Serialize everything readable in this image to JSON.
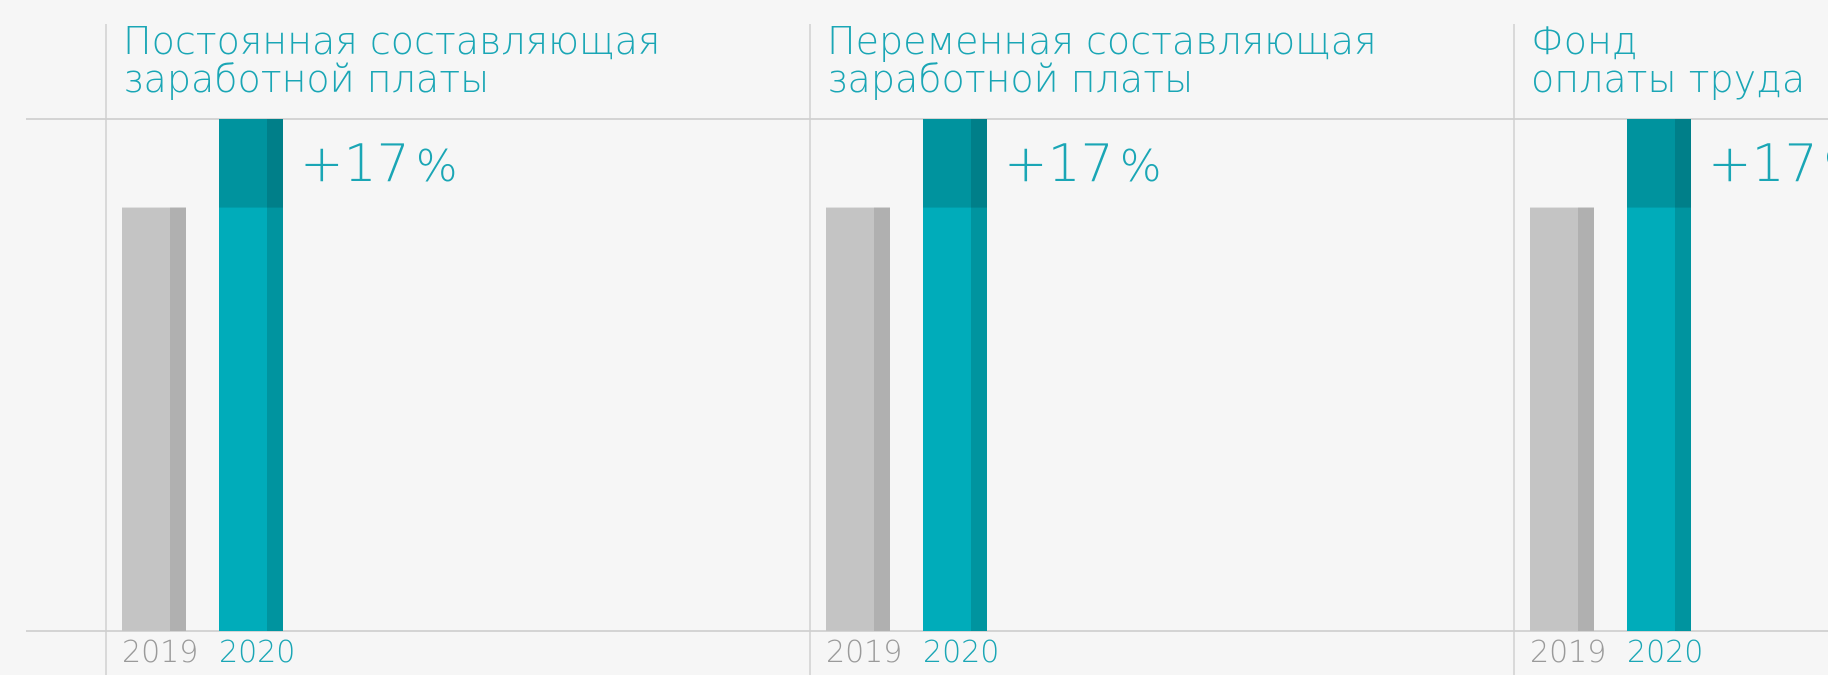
{
  "chart_data": [
    {
      "type": "bar",
      "title": [
        "Постоянная составляющая",
        "заработной платы"
      ],
      "categories": [
        "2019",
        "2020"
      ],
      "values": [
        82.7,
        100
      ],
      "colors": [
        "#c4c4c4",
        "#00acba"
      ],
      "ylim": [
        0,
        100
      ],
      "annotation": "+17",
      "annotation_unit": "%"
    },
    {
      "type": "bar",
      "title": [
        "Переменная составляющая",
        "заработной платы"
      ],
      "categories": [
        "2019",
        "2020"
      ],
      "values": [
        82.7,
        100
      ],
      "colors": [
        "#c4c4c4",
        "#00acba"
      ],
      "ylim": [
        0,
        100
      ],
      "annotation": "+17",
      "annotation_unit": "%"
    },
    {
      "type": "bar",
      "title": [
        "Фонд",
        "оплаты труда"
      ],
      "categories": [
        "2019",
        "2020"
      ],
      "values": [
        82.7,
        100
      ],
      "colors": [
        "#c4c4c4",
        "#00acba"
      ],
      "ylim": [
        0,
        100
      ],
      "annotation": "+17",
      "annotation_unit": "%"
    }
  ]
}
